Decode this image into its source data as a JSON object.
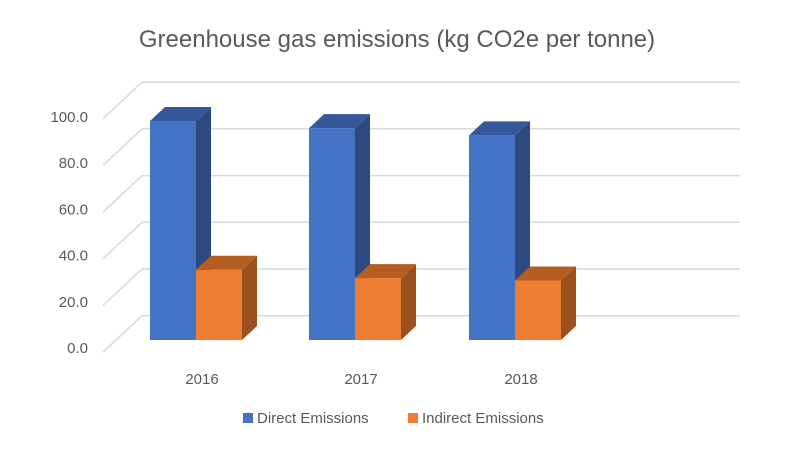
{
  "chart_data": {
    "type": "bar",
    "title": "Greenhouse gas emissions (kg CO2e per tonne)",
    "categories": [
      "2016",
      "2017",
      "2018"
    ],
    "series": [
      {
        "name": "Direct Emissions",
        "values": [
          92,
          89,
          86
        ],
        "color": "#4472C4",
        "side": "#2B4A80",
        "top": "#34589A"
      },
      {
        "name": "Indirect Emissions",
        "values": [
          29.5,
          26,
          25
        ],
        "color": "#ED7D31",
        "side": "#9A501F",
        "top": "#B65D22"
      }
    ],
    "yticks": [
      "0.0",
      "20.0",
      "40.0",
      "60.0",
      "80.0",
      "100.0"
    ],
    "ylim": [
      0,
      100
    ],
    "grid": true,
    "legend": "bottom",
    "xlabel": "",
    "ylabel": ""
  }
}
